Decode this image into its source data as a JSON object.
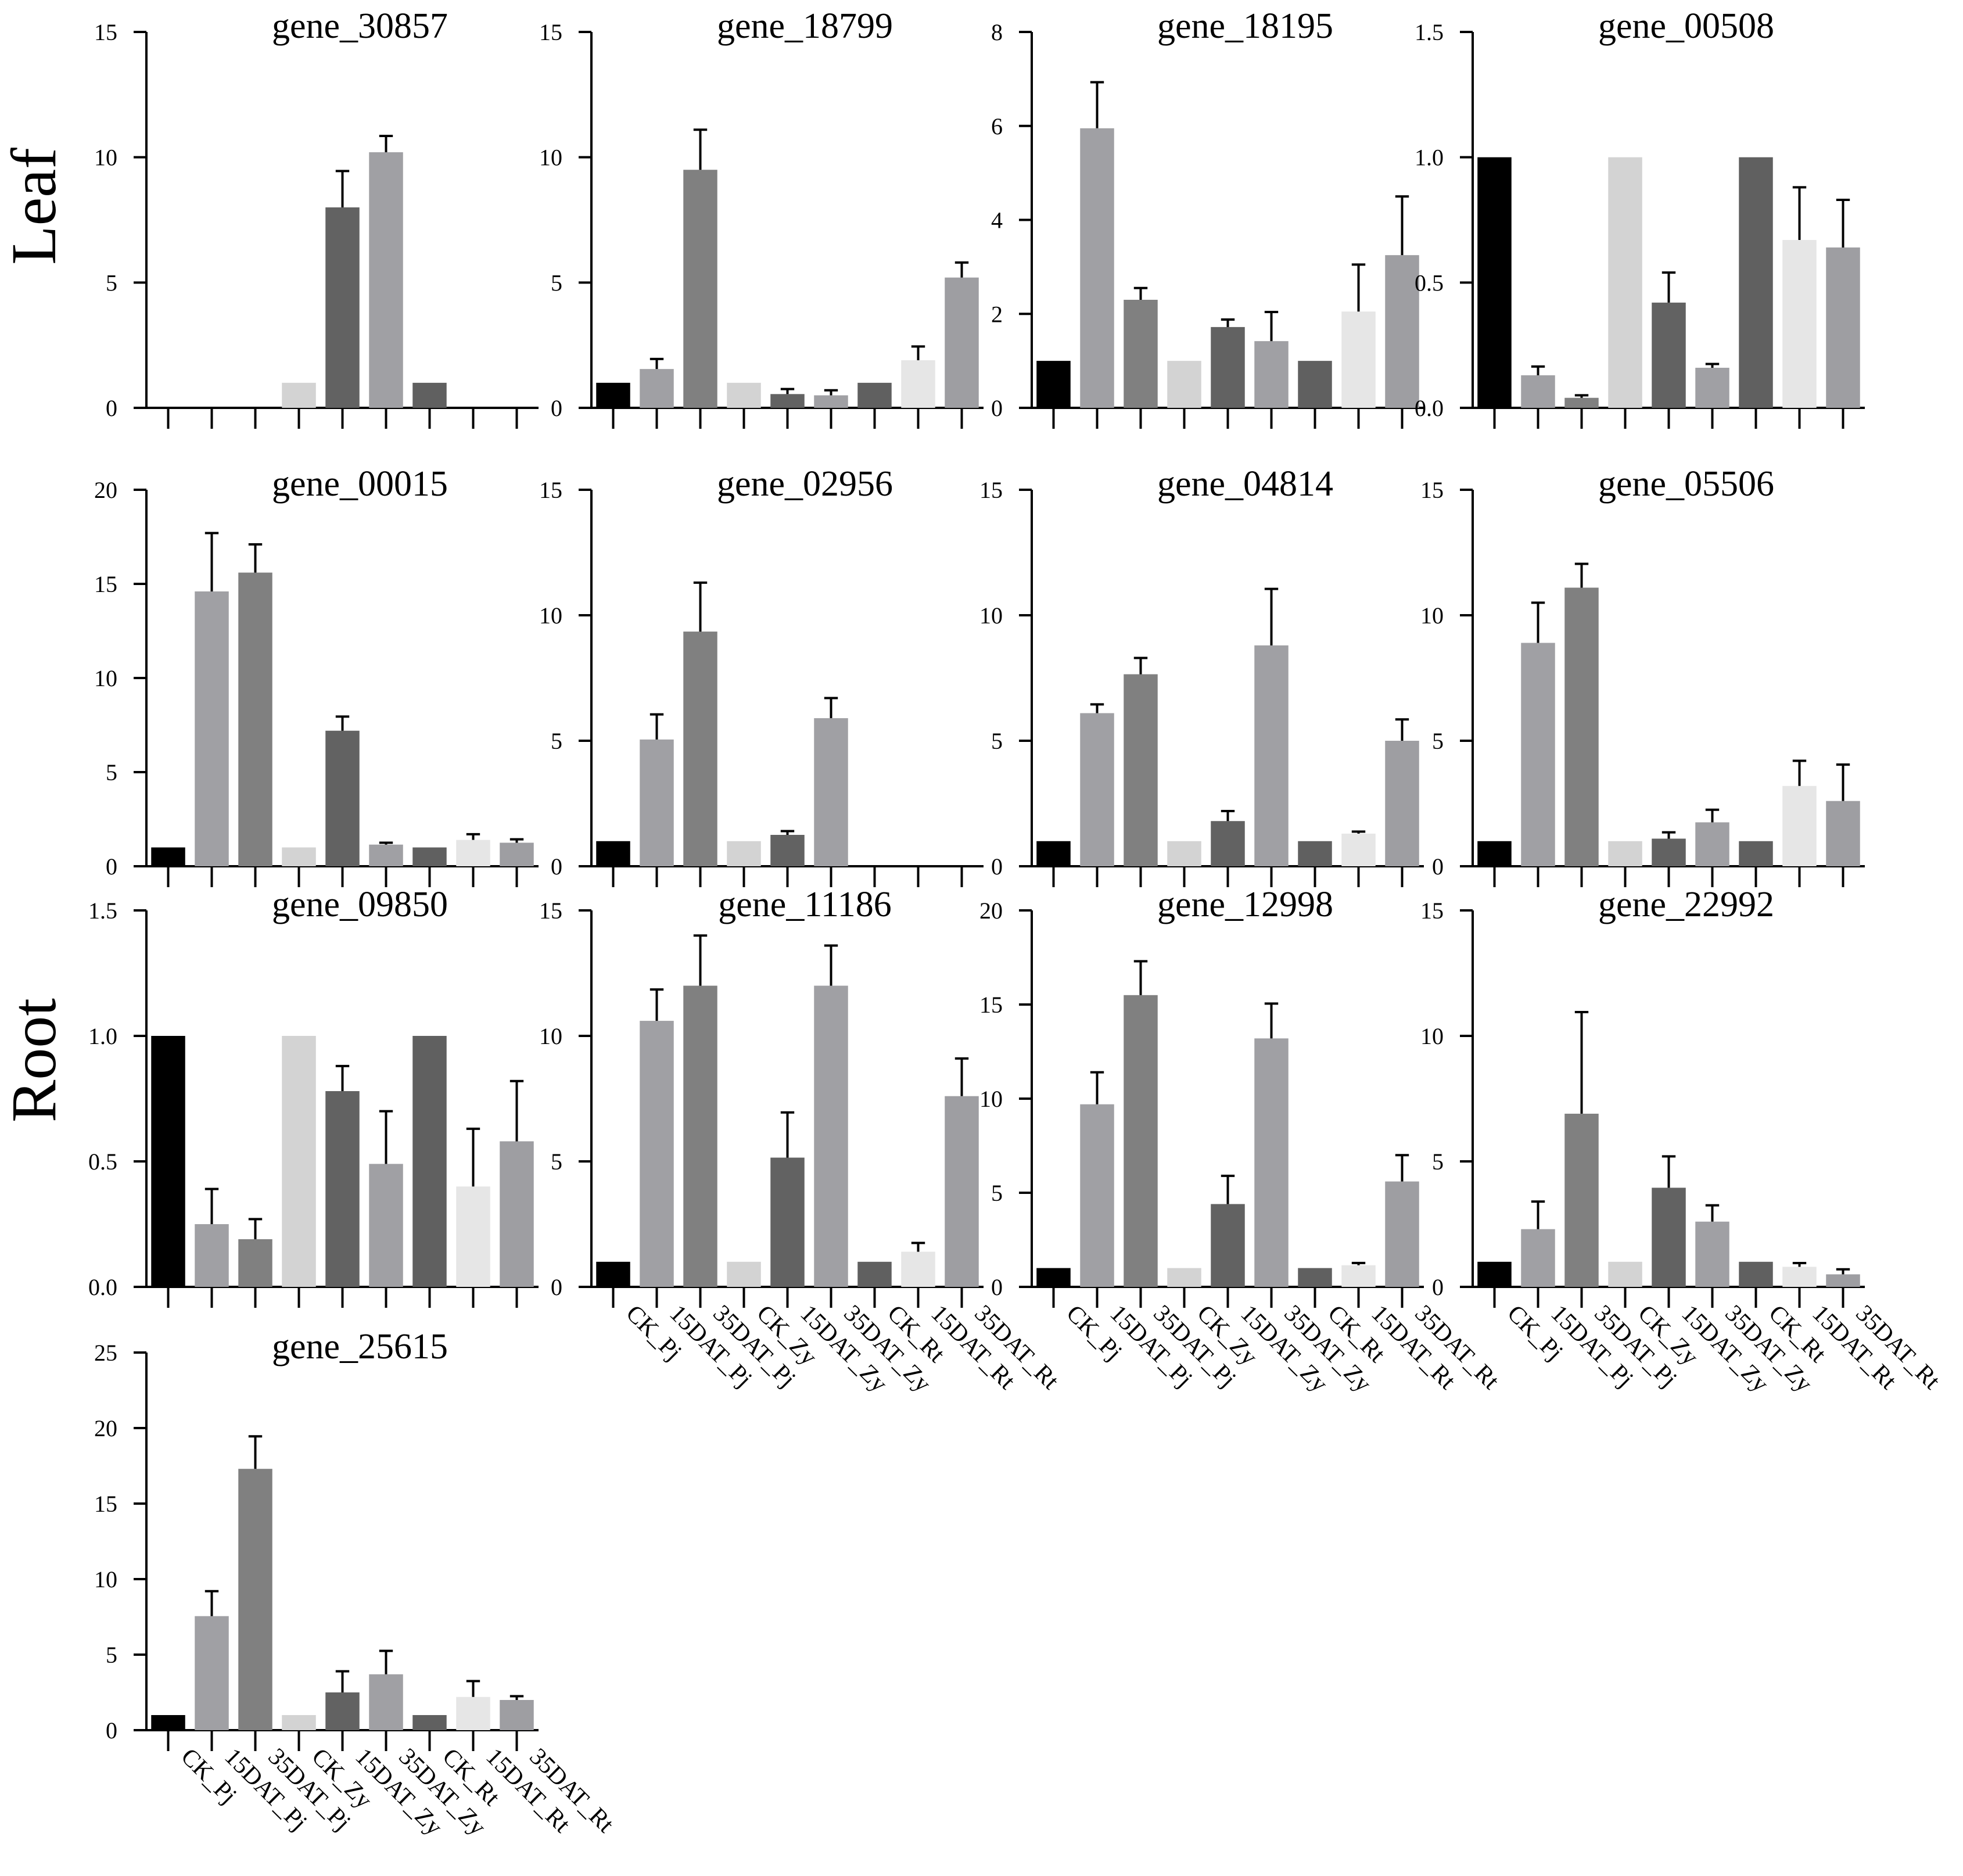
{
  "row_labels": [
    "Leaf",
    "Root"
  ],
  "colors": [
    "#000000",
    "#a0a0a4",
    "#808080",
    "#d3d3d3",
    "#626262",
    "#a0a0a4",
    "#606060",
    "#e6e6e6",
    "#9e9ea2"
  ],
  "chart_data": [
    {
      "type": "bar",
      "title": "gene_30857",
      "categories": [
        "CK_Pj",
        "15DAT_Pj",
        "35DAT_Pj",
        "CK_Zy",
        "15DAT_Zy",
        "35DAT_Zy",
        "CK_Rt",
        "15DAT_Rt",
        "35DAT_Rt"
      ],
      "values": [
        0,
        0,
        0,
        1.0,
        8.0,
        10.2,
        1.0,
        0,
        0
      ],
      "errors": [
        0,
        0,
        0,
        0,
        1.45,
        0.65,
        0,
        0,
        0
      ],
      "ylim": [
        0,
        15
      ],
      "yticks": [
        "0",
        "5",
        "10",
        "15"
      ],
      "show_xlabels": false
    },
    {
      "type": "bar",
      "title": "gene_18799",
      "categories": [
        "CK_Pj",
        "15DAT_Pj",
        "35DAT_Pj",
        "CK_Zy",
        "15DAT_Zy",
        "35DAT_Zy",
        "CK_Rt",
        "15DAT_Rt",
        "35DAT_Rt"
      ],
      "values": [
        1.0,
        1.55,
        9.5,
        1.0,
        0.55,
        0.5,
        1.0,
        1.9,
        5.2
      ],
      "errors": [
        0,
        0.4,
        1.6,
        0,
        0.2,
        0.2,
        0,
        0.55,
        0.6
      ],
      "ylim": [
        0,
        15
      ],
      "yticks": [
        "0",
        "5",
        "10",
        "15"
      ],
      "show_xlabels": false
    },
    {
      "type": "bar",
      "title": "gene_18195",
      "categories": [
        "CK_Pj",
        "15DAT_Pj",
        "35DAT_Pj",
        "CK_Zy",
        "15DAT_Zy",
        "35DAT_Zy",
        "CK_Rt",
        "15DAT_Rt",
        "35DAT_Rt"
      ],
      "values": [
        1.0,
        5.95,
        2.3,
        1.0,
        1.72,
        1.42,
        1.0,
        2.05,
        3.25
      ],
      "errors": [
        0,
        0.98,
        0.25,
        0,
        0.16,
        0.62,
        0,
        1.0,
        1.25
      ],
      "ylim": [
        0,
        8
      ],
      "yticks": [
        "0",
        "2",
        "4",
        "6",
        "8"
      ],
      "show_xlabels": false
    },
    {
      "type": "bar",
      "title": "gene_00508",
      "categories": [
        "CK_Pj",
        "15DAT_Pj",
        "35DAT_Pj",
        "CK_Zy",
        "15DAT_Zy",
        "35DAT_Zy",
        "CK_Rt",
        "15DAT_Rt",
        "35DAT_Rt"
      ],
      "values": [
        1.0,
        0.13,
        0.04,
        1.0,
        0.42,
        0.16,
        1.0,
        0.67,
        0.64
      ],
      "errors": [
        0,
        0.035,
        0.01,
        0,
        0.12,
        0.015,
        0,
        0.21,
        0.19
      ],
      "ylim": [
        0,
        1.5
      ],
      "yticks": [
        "0.0",
        "0.5",
        "1.0",
        "1.5"
      ],
      "show_xlabels": false
    },
    {
      "type": "bar",
      "title": "gene_00015",
      "categories": [
        "CK_Pj",
        "15DAT_Pj",
        "35DAT_Pj",
        "CK_Zy",
        "15DAT_Zy",
        "35DAT_Zy",
        "CK_Rt",
        "15DAT_Rt",
        "35DAT_Rt"
      ],
      "values": [
        1.0,
        14.6,
        15.6,
        1.0,
        7.2,
        1.15,
        1.0,
        1.4,
        1.25
      ],
      "errors": [
        0,
        3.1,
        1.5,
        0,
        0.75,
        0.1,
        0,
        0.3,
        0.18
      ],
      "ylim": [
        0,
        20
      ],
      "yticks": [
        "0",
        "5",
        "10",
        "15",
        "20"
      ],
      "show_xlabels": false
    },
    {
      "type": "bar",
      "title": "gene_02956",
      "categories": [
        "CK_Pj",
        "15DAT_Pj",
        "35DAT_Pj",
        "CK_Zy",
        "15DAT_Zy",
        "35DAT_Zy",
        "CK_Rt",
        "15DAT_Rt",
        "35DAT_Rt"
      ],
      "values": [
        1.0,
        5.05,
        9.35,
        1.0,
        1.25,
        5.9,
        0,
        0,
        0
      ],
      "errors": [
        0,
        1.0,
        1.95,
        0,
        0.15,
        0.8,
        0,
        0,
        0
      ],
      "ylim": [
        0,
        15
      ],
      "yticks": [
        "0",
        "5",
        "10",
        "15"
      ],
      "show_xlabels": false
    },
    {
      "type": "bar",
      "title": "gene_04814",
      "categories": [
        "CK_Pj",
        "15DAT_Pj",
        "35DAT_Pj",
        "CK_Zy",
        "15DAT_Zy",
        "35DAT_Zy",
        "CK_Rt",
        "15DAT_Rt",
        "35DAT_Rt"
      ],
      "values": [
        1.0,
        6.1,
        7.65,
        1.0,
        1.8,
        8.8,
        1.0,
        1.3,
        5.0
      ],
      "errors": [
        0,
        0.35,
        0.65,
        0,
        0.4,
        2.25,
        0,
        0.08,
        0.85
      ],
      "ylim": [
        0,
        15
      ],
      "yticks": [
        "0",
        "5",
        "10",
        "15"
      ],
      "show_xlabels": false
    },
    {
      "type": "bar",
      "title": "gene_05506",
      "categories": [
        "CK_Pj",
        "15DAT_Pj",
        "35DAT_Pj",
        "CK_Zy",
        "15DAT_Zy",
        "35DAT_Zy",
        "CK_Rt",
        "15DAT_Rt",
        "35DAT_Rt"
      ],
      "values": [
        1.0,
        8.9,
        11.1,
        1.0,
        1.1,
        1.75,
        1.0,
        3.2,
        2.6
      ],
      "errors": [
        0,
        1.6,
        0.95,
        0,
        0.25,
        0.5,
        0,
        1.0,
        1.45
      ],
      "ylim": [
        0,
        15
      ],
      "yticks": [
        "0",
        "5",
        "10",
        "15"
      ],
      "show_xlabels": false
    },
    {
      "type": "bar",
      "title": "gene_09850",
      "categories": [
        "CK_Pj",
        "15DAT_Pj",
        "35DAT_Pj",
        "CK_Zy",
        "15DAT_Zy",
        "35DAT_Zy",
        "CK_Rt",
        "15DAT_Rt",
        "35DAT_Rt"
      ],
      "values": [
        1.0,
        0.25,
        0.19,
        1.0,
        0.78,
        0.49,
        1.0,
        0.4,
        0.58
      ],
      "errors": [
        0,
        0.14,
        0.08,
        0,
        0.1,
        0.21,
        0,
        0.23,
        0.24
      ],
      "ylim": [
        0,
        1.5
      ],
      "yticks": [
        "0.0",
        "0.5",
        "1.0",
        "1.5"
      ],
      "show_xlabels": false
    },
    {
      "type": "bar",
      "title": "gene_11186",
      "categories": [
        "CK_Pj",
        "15DAT_Pj",
        "35DAT_Pj",
        "CK_Zy",
        "15DAT_Zy",
        "35DAT_Zy",
        "CK_Rt",
        "15DAT_Rt",
        "35DAT_Rt"
      ],
      "values": [
        1.0,
        10.6,
        12.0,
        1.0,
        5.15,
        12.0,
        1.0,
        1.4,
        7.6
      ],
      "errors": [
        0,
        1.25,
        2.0,
        0,
        1.8,
        1.6,
        0,
        0.35,
        1.5
      ],
      "ylim": [
        0,
        15
      ],
      "yticks": [
        "0",
        "5",
        "10",
        "15"
      ],
      "show_xlabels": true
    },
    {
      "type": "bar",
      "title": "gene_12998",
      "categories": [
        "CK_Pj",
        "15DAT_Pj",
        "35DAT_Pj",
        "CK_Zy",
        "15DAT_Zy",
        "35DAT_Zy",
        "CK_Rt",
        "15DAT_Rt",
        "35DAT_Rt"
      ],
      "values": [
        1.0,
        9.7,
        15.5,
        1.0,
        4.4,
        13.2,
        1.0,
        1.15,
        5.6
      ],
      "errors": [
        0,
        1.7,
        1.8,
        0,
        1.5,
        1.85,
        0,
        0.12,
        1.4
      ],
      "ylim": [
        0,
        20
      ],
      "yticks": [
        "0",
        "5",
        "10",
        "15",
        "20"
      ],
      "show_xlabels": true
    },
    {
      "type": "bar",
      "title": "gene_22992",
      "categories": [
        "CK_Pj",
        "15DAT_Pj",
        "35DAT_Pj",
        "CK_Zy",
        "15DAT_Zy",
        "35DAT_Zy",
        "CK_Rt",
        "15DAT_Rt",
        "35DAT_Rt"
      ],
      "values": [
        1.0,
        2.3,
        6.9,
        1.0,
        3.95,
        2.6,
        1.0,
        0.8,
        0.5
      ],
      "errors": [
        0,
        1.1,
        4.05,
        0,
        1.25,
        0.65,
        0,
        0.15,
        0.2
      ],
      "ylim": [
        0,
        15
      ],
      "yticks": [
        "0",
        "5",
        "10",
        "15"
      ],
      "show_xlabels": true
    },
    {
      "type": "bar",
      "title": "gene_25615",
      "categories": [
        "CK_Pj",
        "15DAT_Pj",
        "35DAT_Pj",
        "CK_Zy",
        "15DAT_Zy",
        "35DAT_Zy",
        "CK_Rt",
        "15DAT_Rt",
        "35DAT_Rt"
      ],
      "values": [
        1.0,
        7.55,
        17.3,
        1.0,
        2.5,
        3.7,
        1.0,
        2.2,
        2.0
      ],
      "errors": [
        0,
        1.65,
        2.15,
        0,
        1.4,
        1.55,
        0,
        1.05,
        0.25
      ],
      "ylim": [
        0,
        25
      ],
      "yticks": [
        "0",
        "5",
        "10",
        "15",
        "20",
        "25"
      ],
      "show_xlabels": true
    }
  ]
}
